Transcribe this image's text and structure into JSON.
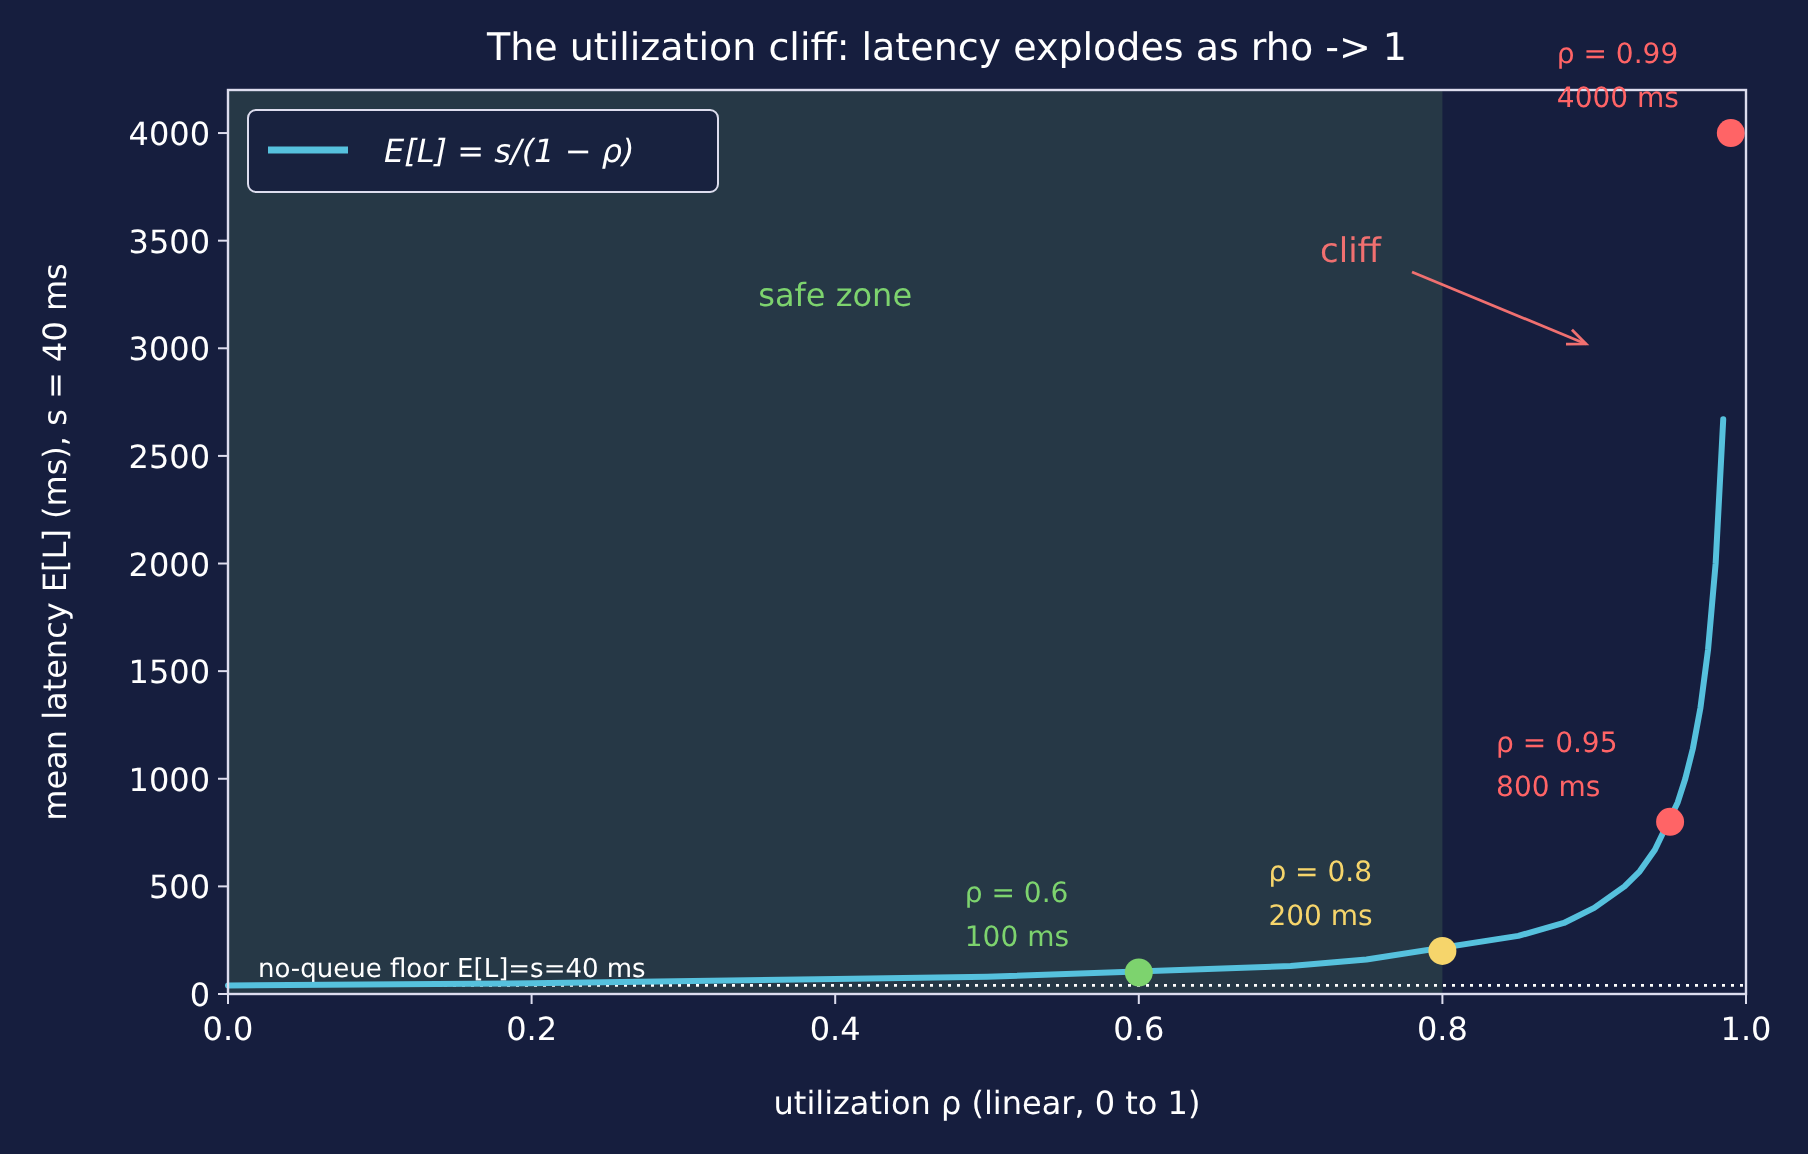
{
  "chart_data": {
    "type": "line",
    "title": "The utilization cliff: latency explodes as rho -> 1",
    "xlabel": "utilization ρ  (linear, 0 to 1)",
    "ylabel": "mean latency E[L] (ms), s = 40 ms",
    "xlim": [
      0,
      1
    ],
    "xticks": [
      {
        "value": 0,
        "label": "0.0"
      },
      0.2,
      0.4,
      0.6,
      0.8,
      {
        "value": 1,
        "label": "1.0"
      }
    ],
    "ylim": [
      0,
      4200
    ],
    "yticks": [
      0,
      500,
      1000,
      1500,
      2000,
      2500,
      3000,
      3500,
      4000
    ],
    "series": [
      {
        "name": "E[L] = s/(1 − ρ)",
        "color": "#56c1dd",
        "x": [
          0,
          0.2,
          0.4,
          0.5,
          0.7,
          0.75,
          0.85,
          0.88,
          0.9,
          0.92,
          0.93,
          0.94,
          0.955,
          0.96,
          0.965,
          0.97,
          0.975,
          0.98,
          0.985
        ],
        "values": [
          40,
          50,
          70,
          80,
          130,
          160,
          270,
          330,
          400,
          500,
          570,
          670,
          890,
          1000,
          1140,
          1330,
          1600,
          2000,
          2670
        ]
      },
      {
        "type": "scatter",
        "x": [
          0.6,
          0.8,
          0.95,
          0.99
        ],
        "values": [
          100,
          200,
          800,
          4000
        ],
        "colors": [
          "#7dd36e",
          "#f6d56b",
          "#ff6466",
          "#ff6466"
        ]
      }
    ],
    "bands": [
      {
        "axis": "x",
        "from": 0,
        "to": 0.8,
        "label": "safe zone",
        "color": "#263846"
      }
    ],
    "ref_lines": [
      {
        "axis": "y",
        "value": 40,
        "label": "no-queue floor E[L]=s=40 ms",
        "color": "#ffffff",
        "line_style": "dotted"
      }
    ],
    "annotations": [
      {
        "text": "ρ = 0.6\n100 ms",
        "x": 0.6,
        "y": 100
      },
      {
        "text": "ρ = 0.8\n200 ms",
        "x": 0.8,
        "y": 200
      },
      {
        "text": "ρ = 0.95\n800 ms",
        "x": 0.95,
        "y": 800
      },
      {
        "text": "ρ = 0.99\n4000 ms",
        "x": 0.99,
        "y": 4000
      },
      "cliff"
    ],
    "legend": "top left",
    "grid": false
  }
}
